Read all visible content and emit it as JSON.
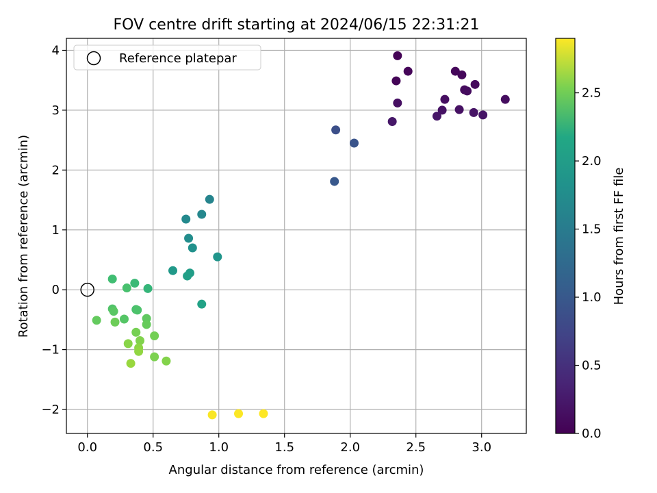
{
  "chart_data": {
    "type": "scatter",
    "title": "FOV centre drift starting at 2024/06/15 22:31:21",
    "xlabel": "Angular distance from reference (arcmin)",
    "ylabel": "Rotation from reference (arcmin)",
    "xlim": [
      -0.16,
      3.34
    ],
    "ylim": [
      -2.4,
      4.2
    ],
    "xticks": [
      0.0,
      0.5,
      1.0,
      1.5,
      2.0,
      2.5,
      3.0
    ],
    "xtick_labels": [
      "0.0",
      "0.5",
      "1.0",
      "1.5",
      "2.0",
      "2.5",
      "3.0"
    ],
    "yticks": [
      -2,
      -1,
      0,
      1,
      2,
      3,
      4
    ],
    "ytick_labels": [
      "−2",
      "−1",
      "0",
      "1",
      "2",
      "3",
      "4"
    ],
    "grid": true,
    "legend": {
      "position": "upper-left",
      "entries": [
        {
          "label": "Reference platepar",
          "marker": "open-circle"
        }
      ]
    },
    "reference_point": {
      "x": 0.0,
      "y": 0.0
    },
    "colorbar": {
      "label": "Hours from first FF file",
      "colormap": "viridis",
      "range": [
        0.0,
        2.9
      ],
      "ticks": [
        0.0,
        0.5,
        1.0,
        1.5,
        2.0,
        2.5
      ],
      "tick_labels": [
        "0.0",
        "0.5",
        "1.0",
        "1.5",
        "2.0",
        "2.5"
      ]
    },
    "points": [
      {
        "x": 2.36,
        "y": 3.91,
        "c": 0.02
      },
      {
        "x": 2.35,
        "y": 3.49,
        "c": 0.03
      },
      {
        "x": 2.44,
        "y": 3.65,
        "c": 0.04
      },
      {
        "x": 2.8,
        "y": 3.65,
        "c": 0.05
      },
      {
        "x": 2.85,
        "y": 3.59,
        "c": 0.06
      },
      {
        "x": 2.95,
        "y": 3.43,
        "c": 0.07
      },
      {
        "x": 2.87,
        "y": 3.34,
        "c": 0.08
      },
      {
        "x": 2.89,
        "y": 3.32,
        "c": 0.09
      },
      {
        "x": 3.18,
        "y": 3.18,
        "c": 0.1
      },
      {
        "x": 2.72,
        "y": 3.18,
        "c": 0.11
      },
      {
        "x": 2.36,
        "y": 3.12,
        "c": 0.12
      },
      {
        "x": 2.83,
        "y": 3.01,
        "c": 0.13
      },
      {
        "x": 2.7,
        "y": 3.0,
        "c": 0.14
      },
      {
        "x": 2.94,
        "y": 2.96,
        "c": 0.15
      },
      {
        "x": 3.01,
        "y": 2.92,
        "c": 0.16
      },
      {
        "x": 2.66,
        "y": 2.9,
        "c": 0.17
      },
      {
        "x": 2.32,
        "y": 2.81,
        "c": 0.18
      },
      {
        "x": 1.89,
        "y": 2.67,
        "c": 0.7
      },
      {
        "x": 2.03,
        "y": 2.45,
        "c": 0.75
      },
      {
        "x": 1.88,
        "y": 1.81,
        "c": 0.8
      },
      {
        "x": 0.93,
        "y": 1.51,
        "c": 1.3
      },
      {
        "x": 0.87,
        "y": 1.26,
        "c": 1.33
      },
      {
        "x": 0.75,
        "y": 1.18,
        "c": 1.36
      },
      {
        "x": 0.77,
        "y": 0.86,
        "c": 1.4
      },
      {
        "x": 0.8,
        "y": 0.7,
        "c": 1.45
      },
      {
        "x": 0.99,
        "y": 0.55,
        "c": 1.5
      },
      {
        "x": 0.65,
        "y": 0.32,
        "c": 1.55
      },
      {
        "x": 0.78,
        "y": 0.28,
        "c": 1.6
      },
      {
        "x": 0.76,
        "y": 0.23,
        "c": 1.63
      },
      {
        "x": 0.87,
        "y": -0.24,
        "c": 1.66
      },
      {
        "x": 0.19,
        "y": 0.18,
        "c": 2.0
      },
      {
        "x": 0.36,
        "y": 0.11,
        "c": 1.95
      },
      {
        "x": 0.3,
        "y": 0.03,
        "c": 2.05
      },
      {
        "x": 0.46,
        "y": 0.02,
        "c": 1.9
      },
      {
        "x": 0.19,
        "y": -0.32,
        "c": 2.1
      },
      {
        "x": 0.2,
        "y": -0.36,
        "c": 2.15
      },
      {
        "x": 0.37,
        "y": -0.33,
        "c": 2.05
      },
      {
        "x": 0.38,
        "y": -0.34,
        "c": 2.08
      },
      {
        "x": 0.07,
        "y": -0.51,
        "c": 2.2
      },
      {
        "x": 0.21,
        "y": -0.54,
        "c": 2.25
      },
      {
        "x": 0.28,
        "y": -0.49,
        "c": 2.12
      },
      {
        "x": 0.45,
        "y": -0.48,
        "c": 2.18
      },
      {
        "x": 0.45,
        "y": -0.58,
        "c": 2.22
      },
      {
        "x": 0.37,
        "y": -0.71,
        "c": 2.3
      },
      {
        "x": 0.51,
        "y": -0.77,
        "c": 2.28
      },
      {
        "x": 0.4,
        "y": -0.85,
        "c": 2.35
      },
      {
        "x": 0.31,
        "y": -0.9,
        "c": 2.38
      },
      {
        "x": 0.39,
        "y": -0.97,
        "c": 2.4
      },
      {
        "x": 0.39,
        "y": -1.03,
        "c": 2.42
      },
      {
        "x": 0.51,
        "y": -1.12,
        "c": 2.33
      },
      {
        "x": 0.6,
        "y": -1.19,
        "c": 2.36
      },
      {
        "x": 0.33,
        "y": -1.23,
        "c": 2.45
      },
      {
        "x": 0.95,
        "y": -2.09,
        "c": 2.88
      },
      {
        "x": 1.15,
        "y": -2.07,
        "c": 2.89
      },
      {
        "x": 1.34,
        "y": -2.07,
        "c": 2.9
      }
    ]
  }
}
